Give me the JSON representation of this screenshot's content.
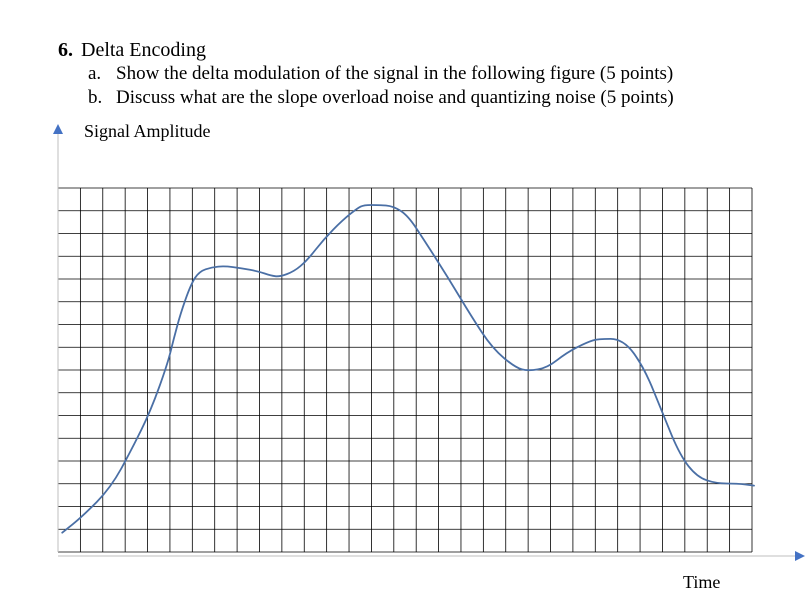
{
  "question": {
    "number": "6.",
    "title": "Delta Encoding",
    "items": [
      {
        "label": "a.",
        "text": "Show the delta modulation of the signal in the following figure (5 points)"
      },
      {
        "label": "b.",
        "text": "Discuss what are the slope overload noise and quantizing noise (5 points)"
      }
    ]
  },
  "axes": {
    "y_label": "Signal Amplitude",
    "x_label": "Time"
  },
  "colors": {
    "grid": "#000000",
    "signal": "#4a6fa5",
    "axis_arrow": "#4472c4"
  },
  "signal_curve": {
    "grid_columns": 31,
    "grid_rows": 16,
    "points": [
      [
        0.2,
        0.9
      ],
      [
        1.2,
        1.7
      ],
      [
        2.5,
        3.0
      ],
      [
        3.5,
        4.8
      ],
      [
        4.4,
        6.6
      ],
      [
        5.2,
        8.8
      ],
      [
        5.5,
        10.0
      ],
      [
        5.8,
        11.1
      ],
      [
        6.3,
        12.5
      ],
      [
        6.7,
        13.1
      ],
      [
        7.3,
        13.3
      ],
      [
        7.9,
        13.35
      ],
      [
        8.7,
        13.25
      ],
      [
        9.5,
        13.1
      ],
      [
        10.1,
        12.9
      ],
      [
        10.5,
        12.85
      ],
      [
        11.2,
        13.1
      ],
      [
        11.8,
        13.6
      ],
      [
        12.6,
        14.6
      ],
      [
        13.5,
        15.5
      ],
      [
        14.2,
        16.05
      ],
      [
        14.5,
        16.2
      ],
      [
        15.2,
        16.2
      ],
      [
        15.9,
        16.15
      ],
      [
        16.6,
        15.7
      ],
      [
        17.4,
        14.5
      ],
      [
        18.5,
        12.8
      ],
      [
        19.6,
        11.0
      ],
      [
        20.6,
        9.5
      ],
      [
        21.7,
        8.6
      ],
      [
        22.3,
        8.45
      ],
      [
        23.2,
        8.6
      ],
      [
        24.1,
        9.3
      ],
      [
        25.1,
        9.8
      ],
      [
        25.6,
        9.95
      ],
      [
        26.8,
        9.95
      ],
      [
        27.8,
        8.6
      ],
      [
        28.7,
        6.4
      ],
      [
        29.5,
        4.5
      ],
      [
        30.3,
        3.5
      ],
      [
        31.2,
        3.2
      ],
      [
        32.2,
        3.2
      ],
      [
        33.0,
        3.1
      ]
    ]
  }
}
